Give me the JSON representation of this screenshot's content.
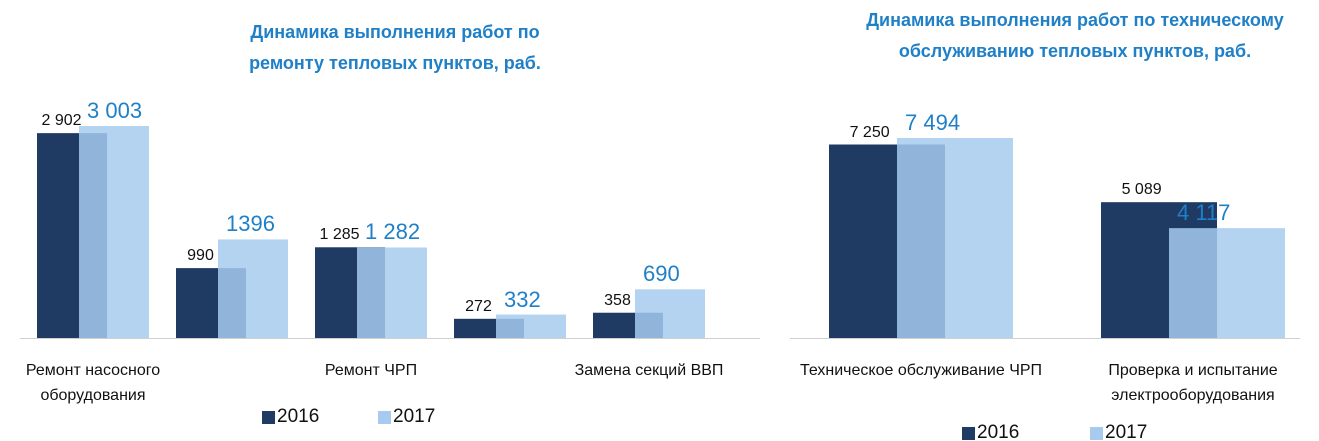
{
  "chart_data": [
    {
      "type": "bar",
      "title": "Динамика выполнения работ по ремонту тепловых пунктов, раб.",
      "categories": [
        "Ремонт насосного оборудования",
        null,
        "Ремонт ЧРП",
        null,
        "Замена секций ВВП"
      ],
      "series": [
        {
          "name": "2016",
          "color": "#1f3b63",
          "values": [
            2902,
            990,
            1285,
            272,
            358
          ],
          "value_labels": [
            "2 902",
            "990",
            "1 285",
            "272",
            "358"
          ]
        },
        {
          "name": "2017",
          "color": "#a6cbef",
          "values": [
            3003,
            1396,
            1282,
            332,
            690
          ],
          "value_labels": [
            "3 003",
            "1396",
            "1 282",
            "332",
            "690"
          ]
        }
      ],
      "legend": "bottom"
    },
    {
      "type": "bar",
      "title": "Динамика выполнения работ по техническому обслуживанию тепловых пунктов, раб.",
      "categories": [
        "Техническое обслуживание ЧРП",
        "Проверка и испытание электрооборудования"
      ],
      "series": [
        {
          "name": "2016",
          "color": "#1f3b63",
          "values": [
            7250,
            5089
          ],
          "value_labels": [
            "7 250",
            "5 089"
          ]
        },
        {
          "name": "2017",
          "color": "#a6cbef",
          "values": [
            7494,
            4117
          ],
          "value_labels": [
            "7 494",
            "4 117"
          ]
        }
      ],
      "legend": "bottom"
    }
  ]
}
